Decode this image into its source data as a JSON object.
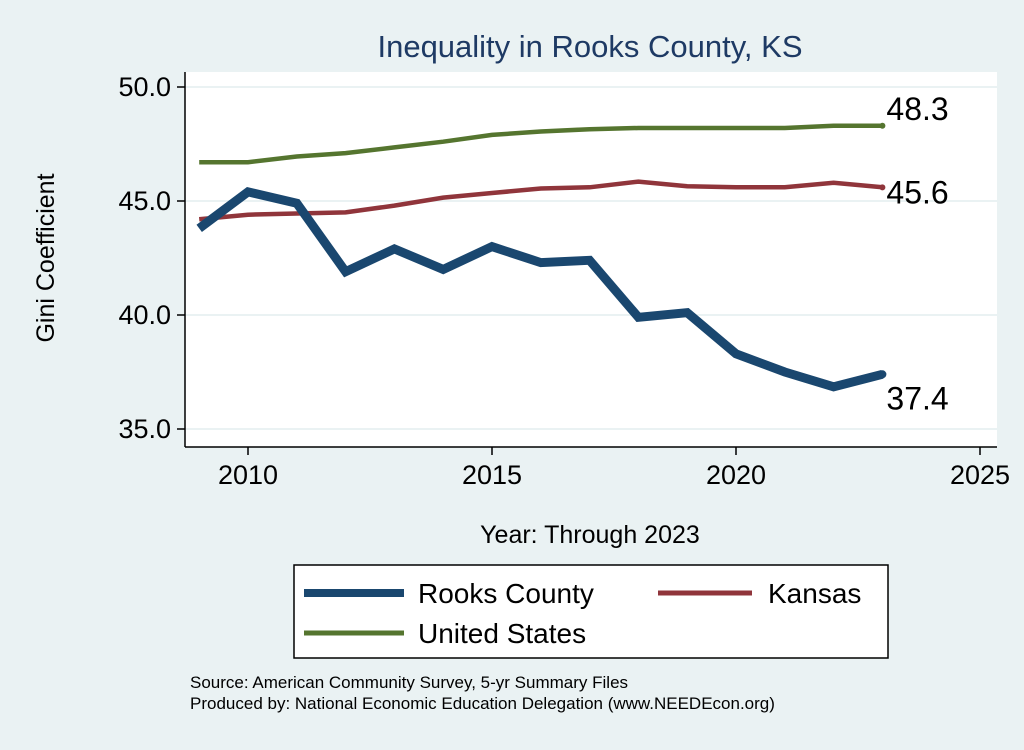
{
  "chart_data": {
    "type": "line",
    "title": "Inequality in Rooks County, KS",
    "xlabel": "Year: Through 2023",
    "ylabel": "Gini Coefficient",
    "xlim": [
      2009,
      2025
    ],
    "ylim": [
      35,
      50.5
    ],
    "xticks": [
      2010,
      2015,
      2020,
      2025
    ],
    "yticks": [
      35.0,
      40.0,
      45.0,
      50.0
    ],
    "ytick_labels": [
      "35.0",
      "40.0",
      "45.0",
      "50.0"
    ],
    "xtick_labels": [
      "2010",
      "2015",
      "2020",
      "2025"
    ],
    "grid": true,
    "legend_position": "bottom",
    "x": [
      2009,
      2010,
      2011,
      2012,
      2013,
      2014,
      2015,
      2016,
      2017,
      2018,
      2019,
      2020,
      2021,
      2022,
      2023
    ],
    "series": [
      {
        "name": "Rooks County",
        "color": "#1a476f",
        "values": [
          43.8,
          45.4,
          44.9,
          41.9,
          42.9,
          42.0,
          43.0,
          42.3,
          42.4,
          39.9,
          40.1,
          38.3,
          37.5,
          36.85,
          37.4
        ],
        "end_label": "37.4"
      },
      {
        "name": "Kansas",
        "color": "#90353b",
        "values": [
          44.2,
          44.4,
          44.45,
          44.5,
          44.8,
          45.15,
          45.35,
          45.55,
          45.6,
          45.85,
          45.65,
          45.6,
          45.6,
          45.8,
          45.6
        ],
        "end_label": "45.6"
      },
      {
        "name": "United States",
        "color": "#55752f",
        "values": [
          46.7,
          46.7,
          46.95,
          47.1,
          47.35,
          47.6,
          47.9,
          48.05,
          48.15,
          48.2,
          48.2,
          48.2,
          48.2,
          48.3,
          48.3
        ],
        "end_label": "48.3"
      }
    ]
  },
  "source_line1": "Source: American Community Survey, 5-yr Summary Files",
  "source_line2": "Produced by: National Economic Education Delegation (www.NEEDEcon.org)"
}
